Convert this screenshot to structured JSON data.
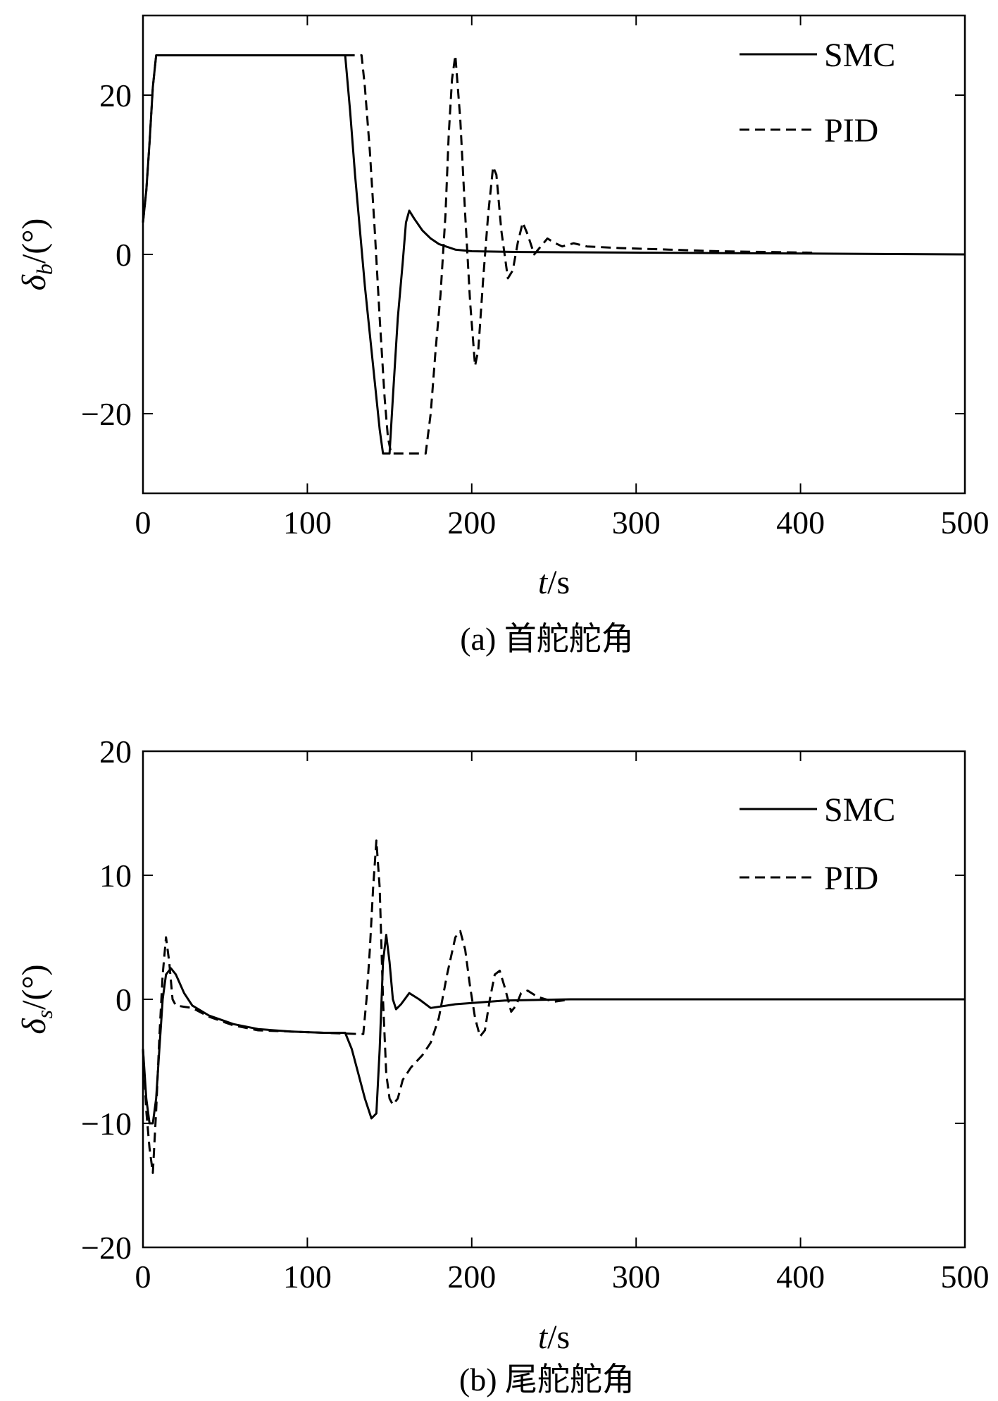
{
  "chart_data": [
    {
      "type": "line",
      "caption": "(a) 首舵舵角",
      "xlabel": "t/s",
      "xlabel_italic": "t",
      "xlabel_rest": "/s",
      "ylabel_symbol": "δ",
      "ylabel_sub": "b",
      "ylabel_rest": "/(°)",
      "xlim": [
        0,
        500
      ],
      "ylim": [
        -30,
        30
      ],
      "xticks": [
        0,
        100,
        200,
        300,
        400,
        500
      ],
      "yticks": [
        -20,
        0,
        20
      ],
      "ytick_labels": [
        "−20",
        "0",
        "20"
      ],
      "legend_position": "top-right",
      "series": [
        {
          "name": "SMC",
          "style": "solid",
          "points": [
            [
              0,
              4
            ],
            [
              2,
              8
            ],
            [
              4,
              14
            ],
            [
              6,
              21
            ],
            [
              8,
              25
            ],
            [
              120,
              25
            ],
            [
              123,
              25
            ],
            [
              126,
              18
            ],
            [
              129,
              10
            ],
            [
              132,
              3
            ],
            [
              135,
              -4
            ],
            [
              138,
              -10
            ],
            [
              141,
              -16
            ],
            [
              144,
              -22
            ],
            [
              146,
              -25
            ],
            [
              150,
              -25
            ],
            [
              152,
              -18
            ],
            [
              155,
              -8
            ],
            [
              158,
              -1
            ],
            [
              160,
              4
            ],
            [
              162,
              5.5
            ],
            [
              165,
              4.5
            ],
            [
              170,
              3
            ],
            [
              175,
              2
            ],
            [
              180,
              1.3
            ],
            [
              190,
              0.6
            ],
            [
              200,
              0.4
            ],
            [
              230,
              0.3
            ],
            [
              500,
              0
            ]
          ]
        },
        {
          "name": "PID",
          "style": "dashed",
          "points": [
            [
              0,
              4
            ],
            [
              2,
              8
            ],
            [
              4,
              14
            ],
            [
              6,
              21
            ],
            [
              8,
              25
            ],
            [
              133,
              25
            ],
            [
              135,
              21
            ],
            [
              138,
              13
            ],
            [
              141,
              3
            ],
            [
              144,
              -8
            ],
            [
              147,
              -18
            ],
            [
              149,
              -23
            ],
            [
              151,
              -25
            ],
            [
              172,
              -25
            ],
            [
              175,
              -20
            ],
            [
              178,
              -12
            ],
            [
              181,
              -5
            ],
            [
              184,
              5
            ],
            [
              186,
              15
            ],
            [
              188,
              22
            ],
            [
              190,
              25
            ],
            [
              193,
              17
            ],
            [
              196,
              5
            ],
            [
              199,
              -6
            ],
            [
              202,
              -14
            ],
            [
              204,
              -12
            ],
            [
              207,
              -3
            ],
            [
              210,
              5
            ],
            [
              213,
              11
            ],
            [
              215,
              10
            ],
            [
              218,
              3
            ],
            [
              222,
              -3
            ],
            [
              225,
              -2
            ],
            [
              228,
              1.5
            ],
            [
              231,
              4
            ],
            [
              234,
              2.5
            ],
            [
              238,
              0
            ],
            [
              242,
              1
            ],
            [
              246,
              2
            ],
            [
              250,
              1.5
            ],
            [
              255,
              1
            ],
            [
              262,
              1.4
            ],
            [
              270,
              1
            ],
            [
              290,
              0.8
            ],
            [
              320,
              0.6
            ],
            [
              350,
              0.4
            ],
            [
              380,
              0.3
            ],
            [
              410,
              0.2
            ]
          ]
        }
      ]
    },
    {
      "type": "line",
      "caption": "(b) 尾舵舵角",
      "xlabel": "t/s",
      "xlabel_italic": "t",
      "xlabel_rest": "/s",
      "ylabel_symbol": "δ",
      "ylabel_sub": "s",
      "ylabel_rest": "/(°)",
      "xlim": [
        0,
        500
      ],
      "ylim": [
        -20,
        20
      ],
      "xticks": [
        0,
        100,
        200,
        300,
        400,
        500
      ],
      "yticks": [
        -20,
        -10,
        0,
        10,
        20
      ],
      "ytick_labels": [
        "−20",
        "−10",
        "0",
        "10",
        "20"
      ],
      "legend_position": "top-right",
      "series": [
        {
          "name": "SMC",
          "style": "solid",
          "points": [
            [
              0,
              -4
            ],
            [
              2,
              -8
            ],
            [
              4,
              -10
            ],
            [
              6,
              -10
            ],
            [
              8,
              -8
            ],
            [
              10,
              -4
            ],
            [
              12,
              0
            ],
            [
              14,
              2
            ],
            [
              17,
              2.5
            ],
            [
              20,
              2
            ],
            [
              25,
              0.5
            ],
            [
              30,
              -0.5
            ],
            [
              40,
              -1.3
            ],
            [
              55,
              -2
            ],
            [
              70,
              -2.4
            ],
            [
              90,
              -2.6
            ],
            [
              110,
              -2.7
            ],
            [
              123,
              -2.7
            ],
            [
              127,
              -4
            ],
            [
              131,
              -6
            ],
            [
              135,
              -8
            ],
            [
              139,
              -9.6
            ],
            [
              142,
              -9.2
            ],
            [
              144,
              -4
            ],
            [
              146,
              3
            ],
            [
              148,
              5.2
            ],
            [
              150,
              3
            ],
            [
              152,
              0
            ],
            [
              154,
              -0.8
            ],
            [
              157,
              -0.4
            ],
            [
              162,
              0.5
            ],
            [
              168,
              0
            ],
            [
              175,
              -0.7
            ],
            [
              190,
              -0.4
            ],
            [
              220,
              -0.1
            ],
            [
              260,
              0
            ],
            [
              500,
              0
            ]
          ]
        },
        {
          "name": "PID",
          "style": "dashed",
          "points": [
            [
              0,
              -4
            ],
            [
              2,
              -9
            ],
            [
              4,
              -12
            ],
            [
              6,
              -14
            ],
            [
              8,
              -9
            ],
            [
              10,
              -3
            ],
            [
              12,
              2
            ],
            [
              14,
              5
            ],
            [
              16,
              3
            ],
            [
              18,
              0
            ],
            [
              20,
              -0.5
            ],
            [
              25,
              -0.6
            ],
            [
              30,
              -0.7
            ],
            [
              40,
              -1.4
            ],
            [
              55,
              -2.1
            ],
            [
              70,
              -2.5
            ],
            [
              90,
              -2.6
            ],
            [
              110,
              -2.7
            ],
            [
              132,
              -2.8
            ],
            [
              134,
              -2.8
            ],
            [
              136,
              0
            ],
            [
              138,
              4
            ],
            [
              140,
              9
            ],
            [
              142,
              12.8
            ],
            [
              144,
              9
            ],
            [
              146,
              0
            ],
            [
              148,
              -6
            ],
            [
              150,
              -8
            ],
            [
              152,
              -8.5
            ],
            [
              155,
              -8
            ],
            [
              158,
              -6.5
            ],
            [
              163,
              -5.5
            ],
            [
              170,
              -4.5
            ],
            [
              175,
              -3.5
            ],
            [
              180,
              -1.5
            ],
            [
              185,
              2
            ],
            [
              190,
              5
            ],
            [
              193,
              5.5
            ],
            [
              196,
              4
            ],
            [
              199,
              1
            ],
            [
              202,
              -1.5
            ],
            [
              205,
              -3
            ],
            [
              208,
              -2.5
            ],
            [
              211,
              0
            ],
            [
              214,
              2
            ],
            [
              217,
              2.3
            ],
            [
              220,
              1
            ],
            [
              224,
              -1
            ],
            [
              227,
              -0.5
            ],
            [
              230,
              0.5
            ],
            [
              234,
              0.7
            ],
            [
              240,
              0.2
            ],
            [
              250,
              -0.2
            ],
            [
              260,
              0
            ]
          ]
        }
      ]
    }
  ]
}
